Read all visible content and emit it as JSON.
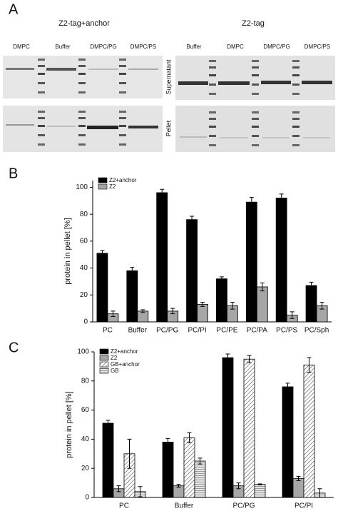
{
  "panel_labels": [
    "A",
    "B",
    "C"
  ],
  "gel": {
    "left_title": "Z2-tag+anchor",
    "right_title": "Z2-tag",
    "left_lanes": [
      "DMPC",
      "Buffer",
      "DMPC/PG",
      "DMPC/PS"
    ],
    "right_lanes": [
      "Buffer",
      "DMPC",
      "DMPC/PG",
      "DMPC/PS"
    ],
    "row_labels": [
      "Supernatant",
      "Pellet"
    ]
  },
  "chart_data": [
    {
      "type": "bar",
      "y_label": "protein in pellet [%]",
      "categories": [
        "PC",
        "Buffer",
        "PC/PG",
        "PC/PI",
        "PC/PE",
        "PC/PA",
        "PC/PS",
        "PC/Sph"
      ],
      "series": [
        {
          "name": "Z2+anchor",
          "color": "#000000",
          "values": [
            51,
            38,
            96,
            76,
            32,
            89,
            92,
            27
          ],
          "errors": [
            2,
            2.5,
            2.5,
            2.5,
            1.5,
            3.5,
            3,
            2.5
          ]
        },
        {
          "name": "Z2",
          "color": "#a6a6a6",
          "values": [
            6,
            8,
            8,
            13,
            12,
            26,
            5,
            12
          ],
          "errors": [
            2,
            1,
            2,
            1.5,
            2.5,
            3,
            2.5,
            2.5
          ]
        }
      ],
      "ylim": [
        0,
        105
      ],
      "yticks": [
        0,
        20,
        40,
        60,
        80,
        100
      ],
      "legend": "upper left"
    },
    {
      "type": "bar",
      "y_label": "protein in pellet [%]",
      "categories": [
        "PC",
        "Buffer",
        "PC/PG",
        "PC/PI"
      ],
      "series": [
        {
          "name": "Z2+anchor",
          "color": "#000000",
          "values": [
            51,
            38,
            96,
            76
          ],
          "errors": [
            2,
            2.5,
            2.5,
            2.5
          ]
        },
        {
          "name": "Z2",
          "color": "#a6a6a6",
          "values": [
            6,
            8,
            8,
            13
          ],
          "errors": [
            2,
            1,
            2,
            1.5
          ]
        },
        {
          "name": "GB+anchor",
          "color": "#ffffff",
          "hatch": "diagonal",
          "values": [
            30,
            41,
            95,
            91
          ],
          "errors": [
            10,
            3.5,
            2.5,
            5
          ]
        },
        {
          "name": "GB",
          "color": "#d9d9d9",
          "hatch": "horizontal",
          "values": [
            4,
            25,
            9,
            3
          ],
          "errors": [
            3.5,
            2,
            0.3,
            3
          ]
        }
      ],
      "ylim": [
        0,
        100
      ],
      "yticks": [
        0,
        20,
        40,
        60,
        80,
        100
      ],
      "legend": "upper left"
    }
  ]
}
